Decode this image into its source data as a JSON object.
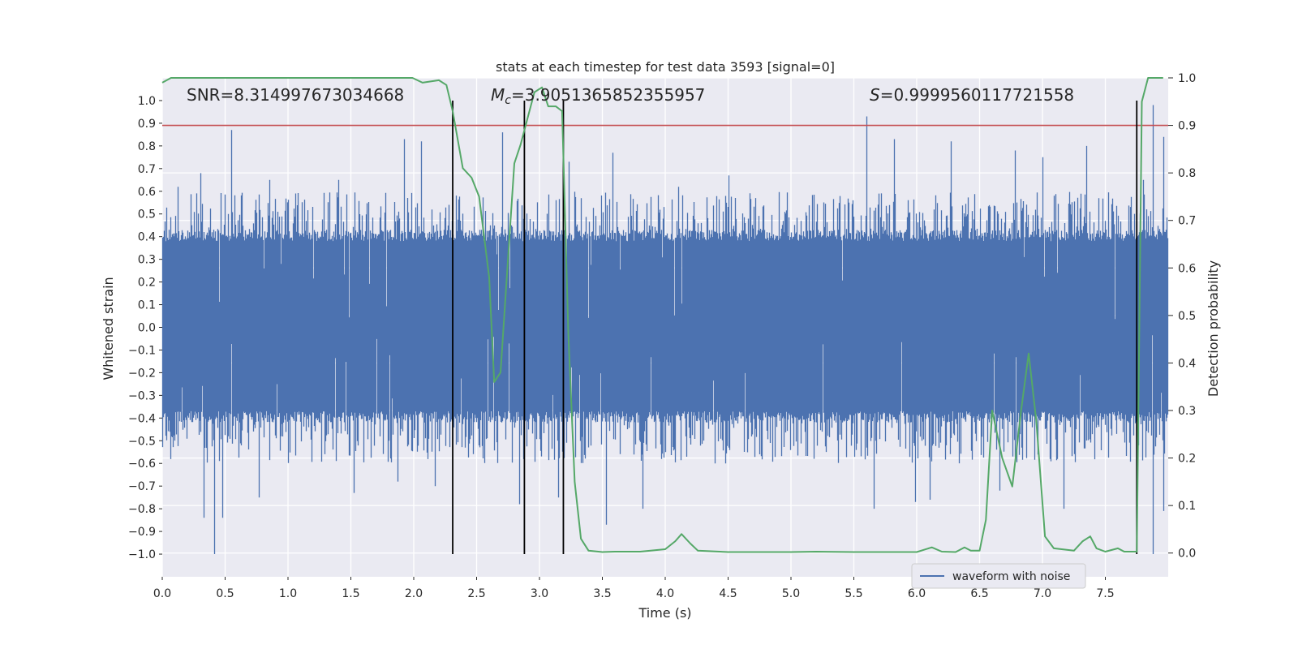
{
  "chart_data": {
    "type": "line",
    "title": "stats at each timestep for test data 3593 [signal=0]",
    "xlabel": "Time (s)",
    "ylabel": "Whitened strain",
    "y2label": "Detection probability",
    "xlim": [
      0.0,
      8.0
    ],
    "ylim": [
      -1.1,
      1.1
    ],
    "y2lim": [
      -0.05,
      1.0
    ],
    "xticks": [
      0.0,
      0.5,
      1.0,
      1.5,
      2.0,
      2.5,
      3.0,
      3.5,
      4.0,
      4.5,
      5.0,
      5.5,
      6.0,
      6.5,
      7.0,
      7.5
    ],
    "xtick_labels": [
      "0.0",
      "0.5",
      "1.0",
      "1.5",
      "2.0",
      "2.5",
      "3.0",
      "3.5",
      "4.0",
      "4.5",
      "5.0",
      "5.5",
      "6.0",
      "6.5",
      "7.0",
      "7.5"
    ],
    "yticks": [
      1.0,
      0.9,
      0.8,
      0.7,
      0.6,
      0.5,
      0.4,
      0.3,
      0.2,
      0.1,
      0.0,
      -0.1,
      -0.2,
      -0.3,
      -0.4,
      -0.5,
      -0.6,
      -0.7,
      -0.8,
      -0.9,
      -1.0
    ],
    "ytick_labels": [
      "1.0",
      "0.9",
      "0.8",
      "0.7",
      "0.6",
      "0.5",
      "0.4",
      "0.3",
      "0.2",
      "0.1",
      "0.0",
      "−0.1",
      "−0.2",
      "−0.3",
      "−0.4",
      "−0.5",
      "−0.6",
      "−0.7",
      "−0.8",
      "−0.9",
      "−1.0"
    ],
    "y2ticks": [
      1.0,
      0.9,
      0.8,
      0.7,
      0.6,
      0.5,
      0.4,
      0.3,
      0.2,
      0.1,
      0.0
    ],
    "y2tick_labels": [
      "1.0",
      "0.9",
      "0.8",
      "0.7",
      "0.6",
      "0.5",
      "0.4",
      "0.3",
      "0.2",
      "0.1",
      "0.0"
    ],
    "grid": true,
    "annotations": {
      "snr": "SNR=8.314997673034668",
      "mc_symbol": "M",
      "mc_sub": "c",
      "mc_value": "=3.9051365852355957",
      "s_symbol": "S",
      "s_value": "=0.9999560117721558"
    },
    "threshold": {
      "y2": 0.9,
      "color": "#c44e52"
    },
    "vertical_lines_x": [
      2.31,
      2.88,
      3.19,
      7.75
    ],
    "legend": {
      "label": "waveform with noise",
      "location": "lower-right"
    },
    "waveform": {
      "name": "waveform with noise",
      "color": "#4c72b0",
      "description": "noise strain, dense band about +/-0.4 with spikes",
      "t_start": 0.0,
      "t_end": 8.0,
      "spikes_pos": [
        [
          0.55,
          0.87
        ],
        [
          0.3,
          0.68
        ],
        [
          0.12,
          0.62
        ],
        [
          0.85,
          0.65
        ],
        [
          1.4,
          0.65
        ],
        [
          1.92,
          0.83
        ],
        [
          2.06,
          0.82
        ],
        [
          2.7,
          0.86
        ],
        [
          3.23,
          0.73
        ],
        [
          3.58,
          0.77
        ],
        [
          4.1,
          0.62
        ],
        [
          4.5,
          0.67
        ],
        [
          5.6,
          0.93
        ],
        [
          5.82,
          0.83
        ],
        [
          6.27,
          0.82
        ],
        [
          6.78,
          0.78
        ],
        [
          7.0,
          0.75
        ],
        [
          7.35,
          0.8
        ],
        [
          7.8,
          0.65
        ],
        [
          7.88,
          0.98
        ],
        [
          7.96,
          0.84
        ]
      ],
      "spikes_neg": [
        [
          0.33,
          -0.84
        ],
        [
          0.41,
          -1.0
        ],
        [
          0.48,
          -0.84
        ],
        [
          0.77,
          -0.75
        ],
        [
          1.52,
          -0.73
        ],
        [
          1.87,
          -0.68
        ],
        [
          2.17,
          -0.7
        ],
        [
          2.84,
          -0.78
        ],
        [
          3.15,
          -0.75
        ],
        [
          3.53,
          -0.87
        ],
        [
          3.82,
          -0.8
        ],
        [
          5.66,
          -0.8
        ],
        [
          5.99,
          -0.77
        ],
        [
          6.1,
          -0.76
        ],
        [
          6.66,
          -0.72
        ],
        [
          7.17,
          -0.8
        ],
        [
          7.88,
          -1.0
        ],
        [
          7.96,
          -0.81
        ]
      ]
    },
    "series": [
      {
        "name": "detection probability",
        "color": "#55a868",
        "axis": "y2",
        "x": [
          0.0,
          0.07,
          0.25,
          1.5,
          1.99,
          2.07,
          2.2,
          2.26,
          2.31,
          2.39,
          2.46,
          2.52,
          2.6,
          2.64,
          2.69,
          2.74,
          2.8,
          2.85,
          2.9,
          2.96,
          3.02,
          3.07,
          3.13,
          3.18,
          3.23,
          3.28,
          3.33,
          3.39,
          3.5,
          3.6,
          3.8,
          4.0,
          4.08,
          4.13,
          4.2,
          4.26,
          4.5,
          5.0,
          5.2,
          5.5,
          6.0,
          6.12,
          6.2,
          6.31,
          6.38,
          6.43,
          6.5,
          6.55,
          6.6,
          6.68,
          6.76,
          6.83,
          6.89,
          6.95,
          7.02,
          7.09,
          7.25,
          7.32,
          7.38,
          7.43,
          7.5,
          7.6,
          7.65,
          7.75,
          7.79,
          7.84,
          7.91,
          7.96
        ],
        "y": [
          0.99,
          1.0,
          1.0,
          1.0,
          1.0,
          0.99,
          0.995,
          0.985,
          0.93,
          0.81,
          0.79,
          0.75,
          0.58,
          0.36,
          0.38,
          0.58,
          0.82,
          0.86,
          0.91,
          0.97,
          0.98,
          0.94,
          0.94,
          0.93,
          0.46,
          0.15,
          0.03,
          0.005,
          0.002,
          0.003,
          0.003,
          0.008,
          0.025,
          0.04,
          0.02,
          0.005,
          0.002,
          0.002,
          0.003,
          0.002,
          0.002,
          0.012,
          0.003,
          0.002,
          0.012,
          0.005,
          0.005,
          0.07,
          0.3,
          0.2,
          0.14,
          0.3,
          0.42,
          0.28,
          0.035,
          0.01,
          0.005,
          0.025,
          0.035,
          0.01,
          0.003,
          0.01,
          0.003,
          0.003,
          0.95,
          1.0,
          1.0,
          1.0
        ]
      }
    ]
  }
}
